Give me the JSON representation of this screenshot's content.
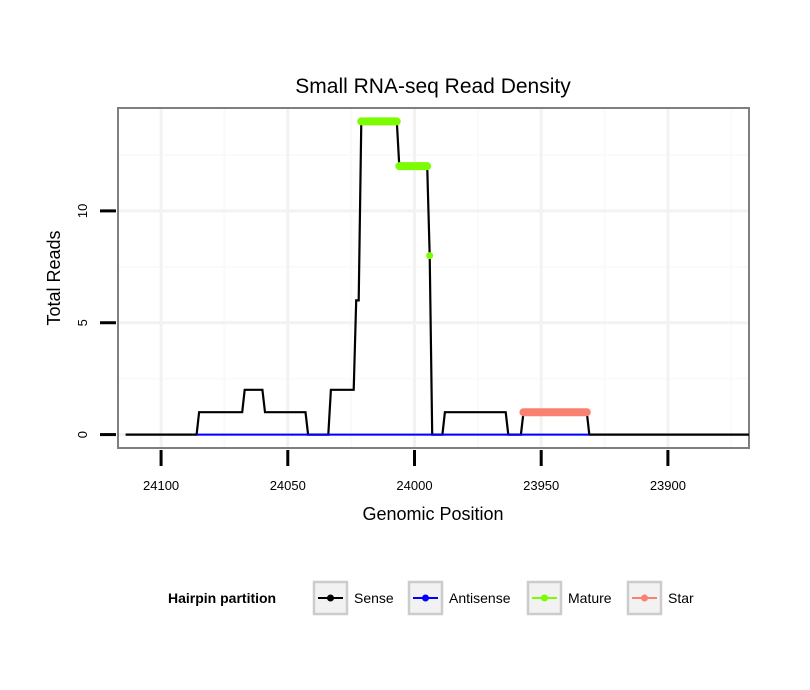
{
  "chart_data": {
    "type": "line",
    "title": "Small RNA-seq Read Density",
    "xlabel": "Genomic Position",
    "ylabel": "Total Reads",
    "x_reversed": true,
    "xlim": [
      24117,
      23868
    ],
    "ylim": [
      -0.6,
      14.6
    ],
    "x_ticks": [
      24100,
      24050,
      24000,
      23950,
      23900
    ],
    "x_tick_labels": [
      "24100",
      "24050",
      "24000",
      "23950",
      "23900"
    ],
    "y_ticks": [
      0,
      5,
      10
    ],
    "y_tick_labels": [
      "0",
      "5",
      "10"
    ],
    "grid": true,
    "legend": {
      "title": "Hairpin partition",
      "position": "bottom",
      "entries": [
        {
          "label": "Sense",
          "color": "#000000"
        },
        {
          "label": "Antisense",
          "color": "#0000ff"
        },
        {
          "label": "Mature",
          "color": "#7cfc00"
        },
        {
          "label": "Star",
          "color": "#fa8072"
        }
      ]
    },
    "series": [
      {
        "name": "Sense",
        "color": "#000000",
        "mode": "line",
        "points": [
          [
            24114,
            0
          ],
          [
            24086,
            0
          ],
          [
            24085,
            1
          ],
          [
            24068,
            1
          ],
          [
            24067,
            2
          ],
          [
            24060,
            2
          ],
          [
            24059,
            1
          ],
          [
            24043,
            1
          ],
          [
            24042,
            0
          ],
          [
            24034,
            0
          ],
          [
            24033,
            2
          ],
          [
            24024,
            2
          ],
          [
            24023,
            6
          ],
          [
            24022,
            6
          ],
          [
            24021,
            14
          ],
          [
            24007,
            14
          ],
          [
            24006,
            12
          ],
          [
            23995,
            12
          ],
          [
            23994,
            8
          ],
          [
            23993,
            0
          ],
          [
            23989,
            0
          ],
          [
            23988,
            1
          ],
          [
            23964,
            1
          ],
          [
            23963,
            0
          ],
          [
            23958,
            0
          ],
          [
            23957,
            1
          ],
          [
            23932,
            1
          ],
          [
            23931,
            0
          ],
          [
            23868,
            0
          ]
        ]
      },
      {
        "name": "Antisense",
        "color": "#0000ff",
        "mode": "line",
        "points": [
          [
            24086,
            0
          ],
          [
            23931,
            0
          ]
        ]
      },
      {
        "name": "Mature",
        "color": "#7cfc00",
        "mode": "segments",
        "segments": [
          {
            "x_from": 24021,
            "x_to": 24007,
            "y": 14
          },
          {
            "x_from": 24006,
            "x_to": 23995,
            "y": 12
          },
          {
            "x_from": 23994,
            "x_to": 23994,
            "y": 8
          }
        ]
      },
      {
        "name": "Star",
        "color": "#fa8072",
        "mode": "segments",
        "segments": [
          {
            "x_from": 23957,
            "x_to": 23932,
            "y": 1
          }
        ]
      }
    ]
  }
}
